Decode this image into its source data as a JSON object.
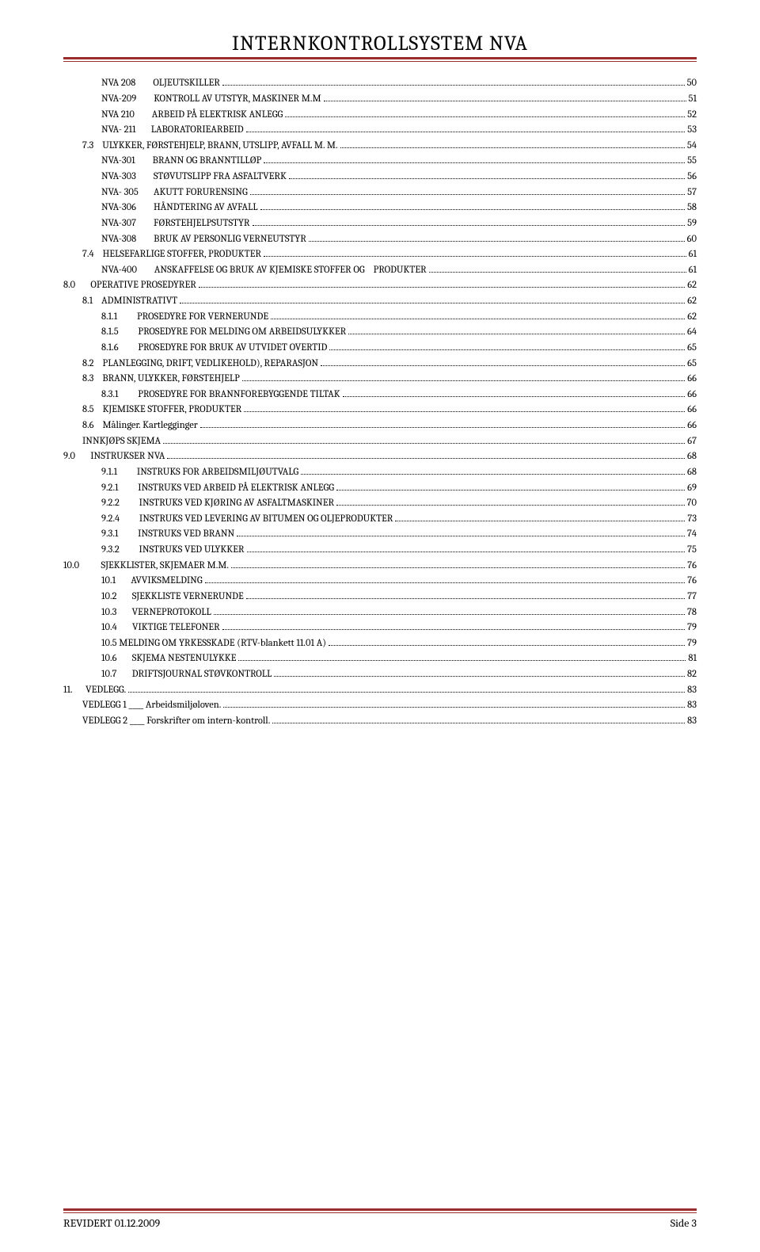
{
  "title": "INTERNKONTROLLSYSTEM NVA",
  "footer": {
    "left": "REVIDERT 01.12.2009",
    "right": "Side 3"
  },
  "toc": [
    {
      "indent": 2,
      "label": "NVA 208        OLJEUTSKILLER",
      "page": "50"
    },
    {
      "indent": 2,
      "label": "NVA-209        KONTROLL AV UTSTYR, MASKINER M.M",
      "page": "51"
    },
    {
      "indent": 2,
      "label": "NVA 210        ARBEID PÅ ELEKTRISK ANLEGG",
      "page": "52"
    },
    {
      "indent": 2,
      "label": "NVA- 211       LABORATORIEARBEID",
      "page": "53"
    },
    {
      "indent": 1,
      "label": "7.3    ULYKKER, FØRSTEHJELP, BRANN, UTSLIPP, AVFALL M. M.",
      "page": "54"
    },
    {
      "indent": 2,
      "label": "NVA-301        BRANN OG BRANNTILLØP",
      "page": "55"
    },
    {
      "indent": 2,
      "label": "NVA-303        STØVUTSLIPP FRA ASFALTVERK",
      "page": "56"
    },
    {
      "indent": 2,
      "label": "NVA- 305       AKUTT FORURENSING",
      "page": "57"
    },
    {
      "indent": 2,
      "label": "NVA-306        HÅNDTERING AV AVFALL",
      "page": "58"
    },
    {
      "indent": 2,
      "label": "NVA-307        FØRSTEHJELPSUTSTYR",
      "page": "59"
    },
    {
      "indent": 2,
      "label": "NVA-308        BRUK AV PERSONLIG VERNEUTSTYR",
      "page": "60"
    },
    {
      "indent": 1,
      "label": "7.4    HELSEFARLIGE STOFFER, PRODUKTER",
      "page": "61"
    },
    {
      "indent": 2,
      "label": "NVA-400        ANSKAFFELSE OG BRUK AV KJEMISKE STOFFER OG    PRODUKTER",
      "page": "61"
    },
    {
      "indent": 0,
      "label": "8.0       OPERATIVE PROSEDYRER",
      "page": "62"
    },
    {
      "indent": 1,
      "label": "8.1    ADMINISTRATIVT",
      "page": "62"
    },
    {
      "indent": 2,
      "label": "8.1.1         PROSEDYRE FOR VERNERUNDE",
      "page": "62"
    },
    {
      "indent": 2,
      "label": "8.1.5         PROSEDYRE FOR MELDING OM ARBEIDSULYKKER",
      "page": "64"
    },
    {
      "indent": 2,
      "label": "8.1.6         PROSEDYRE FOR BRUK AV UTVIDET OVERTID",
      "page": "65"
    },
    {
      "indent": 1,
      "label": "8.2    PLANLEGGING, DRIFT, VEDLIKEHOLD), REPARASJON",
      "page": "65"
    },
    {
      "indent": 1,
      "label": "8.3    BRANN, ULYKKER, FØRSTEHJELP",
      "page": "66"
    },
    {
      "indent": 2,
      "label": "8.3.1         PROSEDYRE FOR BRANNFOREBYGGENDE TILTAK",
      "page": "66"
    },
    {
      "indent": 1,
      "label": "8.5    KJEMISKE STOFFER, PRODUKTER",
      "page": "66"
    },
    {
      "indent": 1,
      "label": "8.6    Målinger. Kartlegginger",
      "page": "66"
    },
    {
      "indent": 1,
      "label": "INNKJØPS SKJEMA",
      "page": "67"
    },
    {
      "indent": 0,
      "label": "9.0       INSTRUKSER NVA",
      "page": "68"
    },
    {
      "indent": 2,
      "label": "9.1.1         INSTRUKS FOR ARBEIDSMILJØUTVALG",
      "page": "68"
    },
    {
      "indent": 2,
      "label": "9.2.1         INSTRUKS VED ARBEID PÅ ELEKTRISK ANLEGG",
      "page": "69"
    },
    {
      "indent": 2,
      "label": "9.2.2         INSTRUKS VED KJØRING AV ASFALTMASKINER",
      "page": "70"
    },
    {
      "indent": 2,
      "label": "9.2.4         INSTRUKS VED LEVERING AV BITUMEN OG OLJEPRODUKTER",
      "page": "73"
    },
    {
      "indent": 2,
      "label": "9.3.1         INSTRUKS VED BRANN",
      "page": "74"
    },
    {
      "indent": 2,
      "label": "9.3.2         INSTRUKS VED ULYKKER",
      "page": "75"
    },
    {
      "indent": 0,
      "label": "10.0          SJEKKLISTER, SKJEMAER M.M.",
      "page": "76"
    },
    {
      "indent": 2,
      "label": "10.1       AVVIKSMELDING",
      "page": "76"
    },
    {
      "indent": 2,
      "label": "10.2       SJEKKLISTE VERNERUNDE",
      "page": "77"
    },
    {
      "indent": 2,
      "label": "10.3       VERNEPROTOKOLL",
      "page": "78"
    },
    {
      "indent": 2,
      "label": "10.4       VIKTIGE TELEFONER",
      "page": "79"
    },
    {
      "indent": 2,
      "label": "10.5 MELDING OM YRKESSKADE (RTV-blankett 11.01 A)",
      "page": "79"
    },
    {
      "indent": 2,
      "label": "10.6       SKJEMA NESTENULYKKE",
      "page": "81"
    },
    {
      "indent": 2,
      "label": "10.7       DRIFTSJOURNAL STØVKONTROLL",
      "page": "82"
    },
    {
      "indent": 0,
      "label": "11.      VEDLEGG.",
      "page": "83"
    },
    {
      "indent": 1,
      "label": "VEDLEGG 1 ____ Arbeidsmiljøloven.",
      "page": "83"
    },
    {
      "indent": 1,
      "label": "VEDLEGG 2 ____ Forskrifter om intern-kontroll.",
      "page": "83"
    }
  ]
}
